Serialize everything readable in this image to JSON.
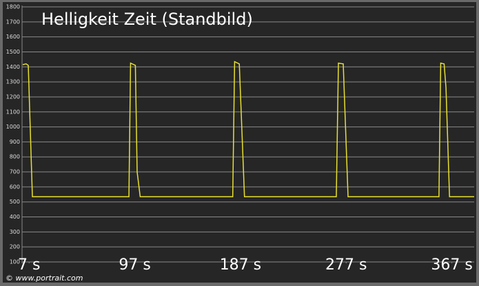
{
  "chart_data": {
    "type": "line",
    "title": "Helligkeit Zeit (Standbild)",
    "watermark": "© www.portrait.com",
    "x": [
      1.6,
      4.5,
      6.3,
      9.8,
      92,
      93.4,
      97.5,
      99,
      101.6,
      180.4,
      182,
      186,
      190.4,
      268.6,
      270.4,
      274.5,
      278.6,
      356,
      357.5,
      360.4,
      362,
      365,
      386
    ],
    "series": [
      {
        "color": "#e8e030",
        "values": [
          1415,
          1420,
          1410,
          535,
          535,
          1425,
          1410,
          700,
          535,
          535,
          1435,
          1420,
          535,
          535,
          1425,
          1420,
          535,
          535,
          1425,
          1420,
          1260,
          535,
          535
        ]
      }
    ],
    "xlim": [
      1,
      386
    ],
    "xticks": [
      {
        "value": 7,
        "label": "7 s"
      },
      {
        "value": 97,
        "label": "97 s"
      },
      {
        "value": 187,
        "label": "187 s"
      },
      {
        "value": 277,
        "label": "277 s"
      },
      {
        "value": 367,
        "label": "367 s"
      }
    ],
    "ylim": [
      100,
      1800
    ],
    "yticks": [
      100,
      200,
      300,
      400,
      500,
      600,
      700,
      800,
      900,
      1000,
      1100,
      1200,
      1300,
      1400,
      1500,
      1600,
      1700,
      1800
    ],
    "grid": true
  }
}
